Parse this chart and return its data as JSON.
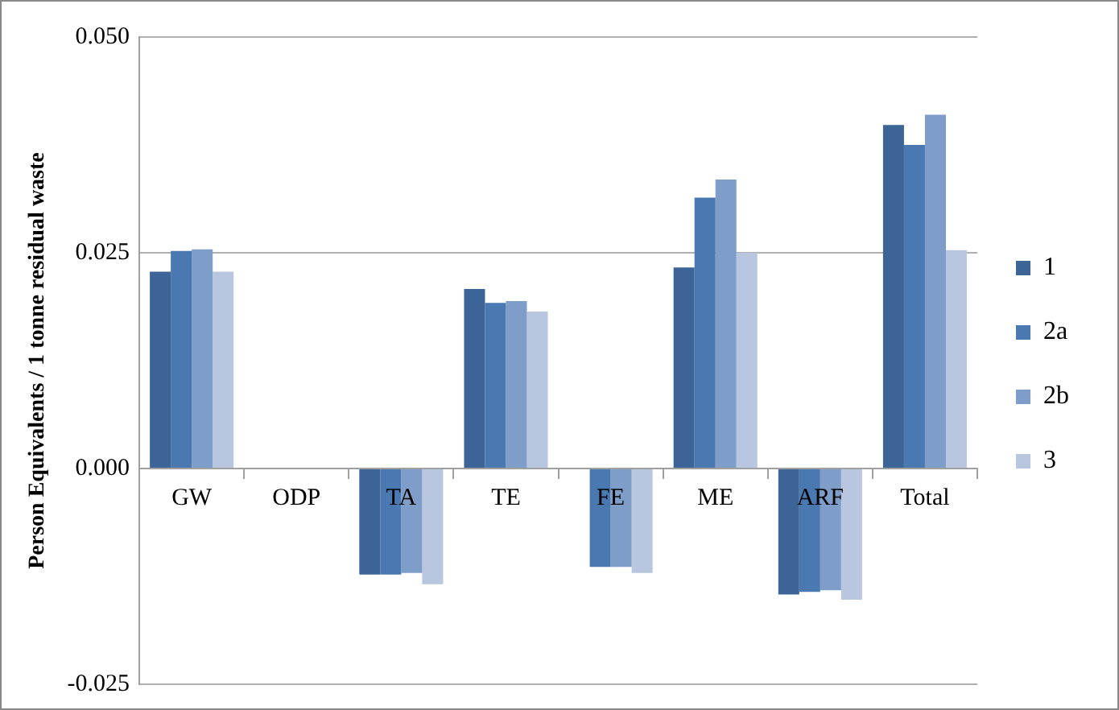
{
  "chart_data": {
    "type": "bar",
    "ylabel": "Person Equivalents / 1 tonne residual waste",
    "categories": [
      "GW",
      "ODP",
      "TA",
      "TE",
      "FE",
      "ME",
      "ARF",
      "Total"
    ],
    "series": [
      {
        "name": "1",
        "color": "#3d6496",
        "values": [
          0.0228,
          0,
          -0.0123,
          0.0208,
          0,
          0.0233,
          -0.0146,
          0.0398
        ]
      },
      {
        "name": "2a",
        "color": "#4a78b0",
        "values": [
          0.0252,
          0,
          -0.0123,
          0.0192,
          -0.0114,
          0.0314,
          -0.0143,
          0.0375
        ]
      },
      {
        "name": "2b",
        "color": "#7f9dc9",
        "values": [
          0.0254,
          0,
          -0.0121,
          0.0194,
          -0.0114,
          0.0335,
          -0.0141,
          0.041
        ]
      },
      {
        "name": "3",
        "color": "#b8c6df",
        "values": [
          0.0228,
          0,
          -0.0134,
          0.0182,
          -0.0121,
          0.025,
          -0.0152,
          0.0253
        ]
      }
    ],
    "ylim": [
      -0.025,
      0.05
    ],
    "yticks": [
      {
        "value": -0.025,
        "label": "-0.025"
      },
      {
        "value": 0,
        "label": "0.000"
      },
      {
        "value": 0.025,
        "label": "0.025"
      },
      {
        "value": 0.05,
        "label": "0.050"
      }
    ],
    "grid": "y",
    "legend": "right"
  }
}
